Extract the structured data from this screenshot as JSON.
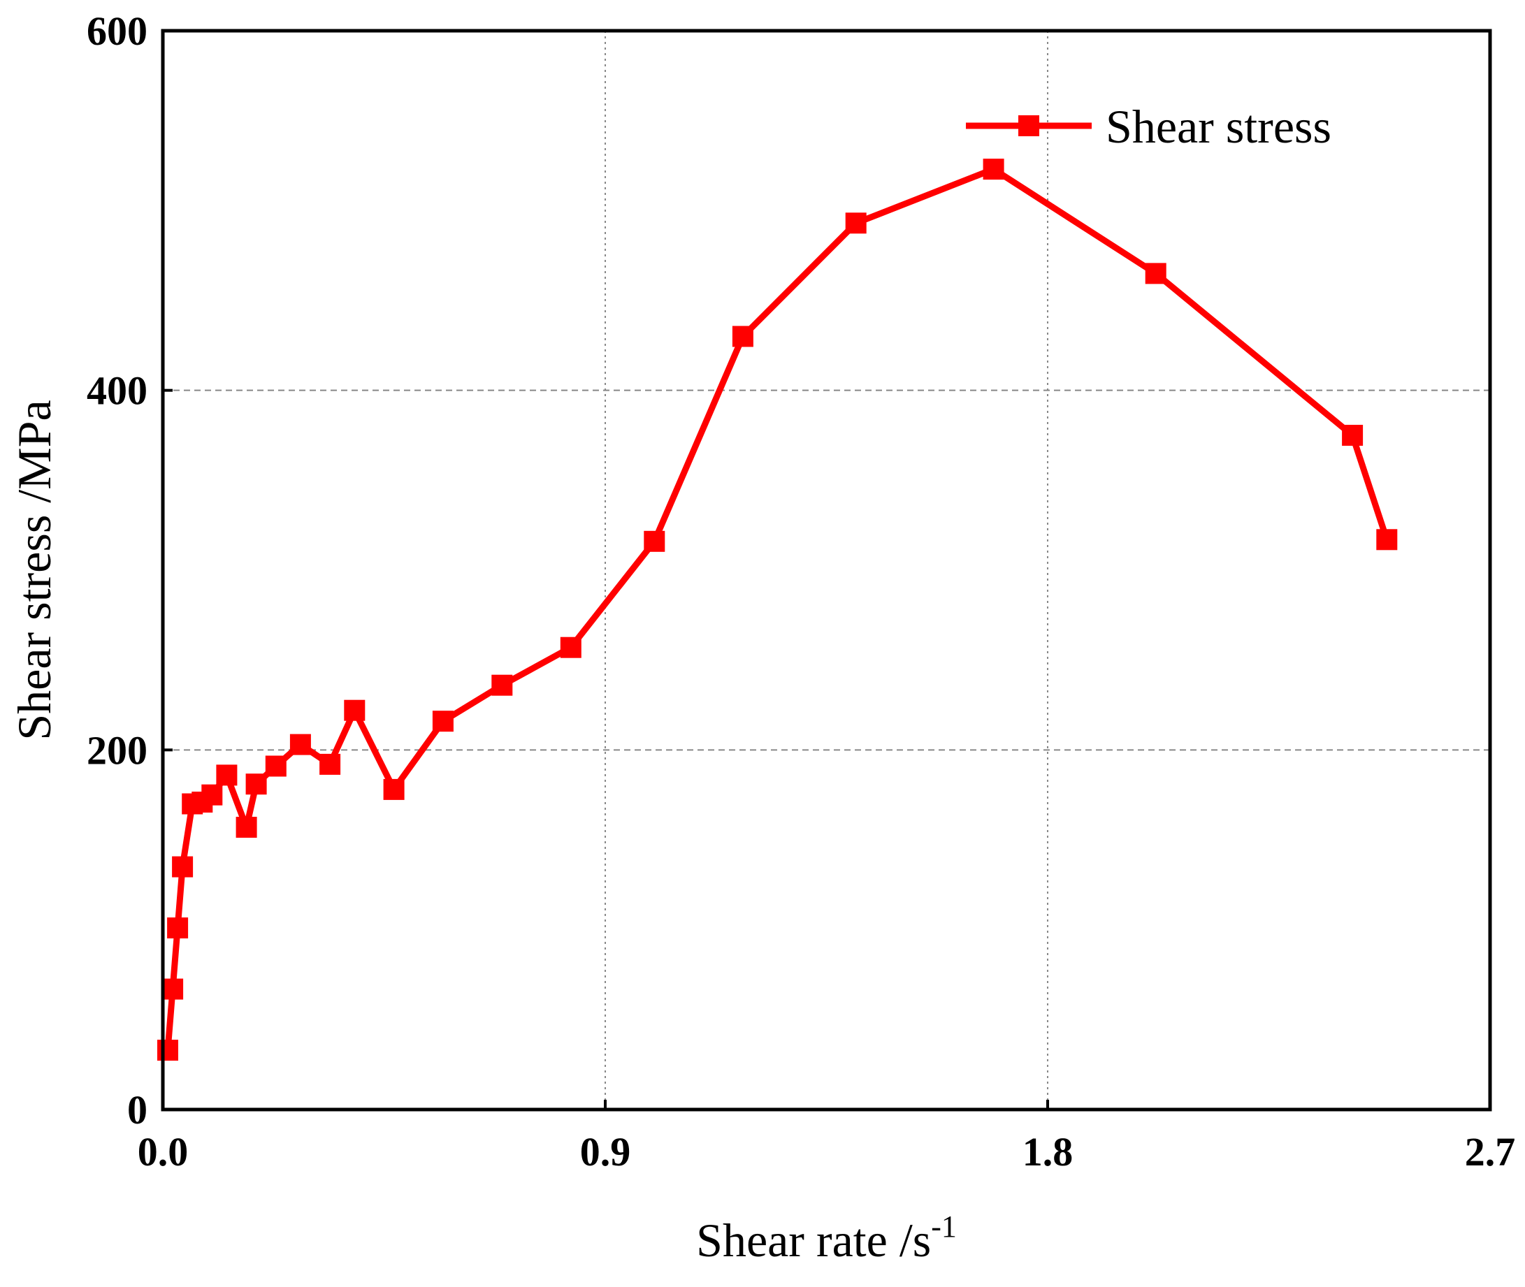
{
  "chart_data": {
    "type": "line",
    "xlabel": "Shear rate /s",
    "xlabel_superscript": "-1",
    "ylabel": "Shear stress /MPa",
    "xlim": [
      0.0,
      2.7
    ],
    "ylim": [
      0,
      600
    ],
    "xticks": [
      0.0,
      0.9,
      1.8,
      2.7
    ],
    "xtick_labels": [
      "0.0",
      "0.9",
      "1.8",
      "2.7"
    ],
    "yticks": [
      0,
      200,
      400,
      600
    ],
    "ytick_labels": [
      "0",
      "200",
      "400",
      "600"
    ],
    "grid": true,
    "legend": {
      "position": "top-right",
      "entries": [
        "Shear stress"
      ]
    },
    "colors": {
      "series": "#ff0000",
      "grid": "#888888",
      "axis": "#000000"
    },
    "series": [
      {
        "name": "Shear stress",
        "x": [
          0.01,
          0.02,
          0.03,
          0.04,
          0.06,
          0.08,
          0.1,
          0.13,
          0.17,
          0.19,
          0.23,
          0.28,
          0.34,
          0.39,
          0.47,
          0.57,
          0.69,
          0.83,
          1.0,
          1.18,
          1.41,
          1.69,
          2.02,
          2.42,
          2.49
        ],
        "y": [
          33,
          67,
          101,
          135,
          170,
          171,
          175,
          186,
          157,
          181,
          191,
          203,
          192,
          222,
          178,
          216,
          236,
          257,
          316,
          430,
          493,
          523,
          465,
          375,
          317
        ]
      }
    ]
  }
}
